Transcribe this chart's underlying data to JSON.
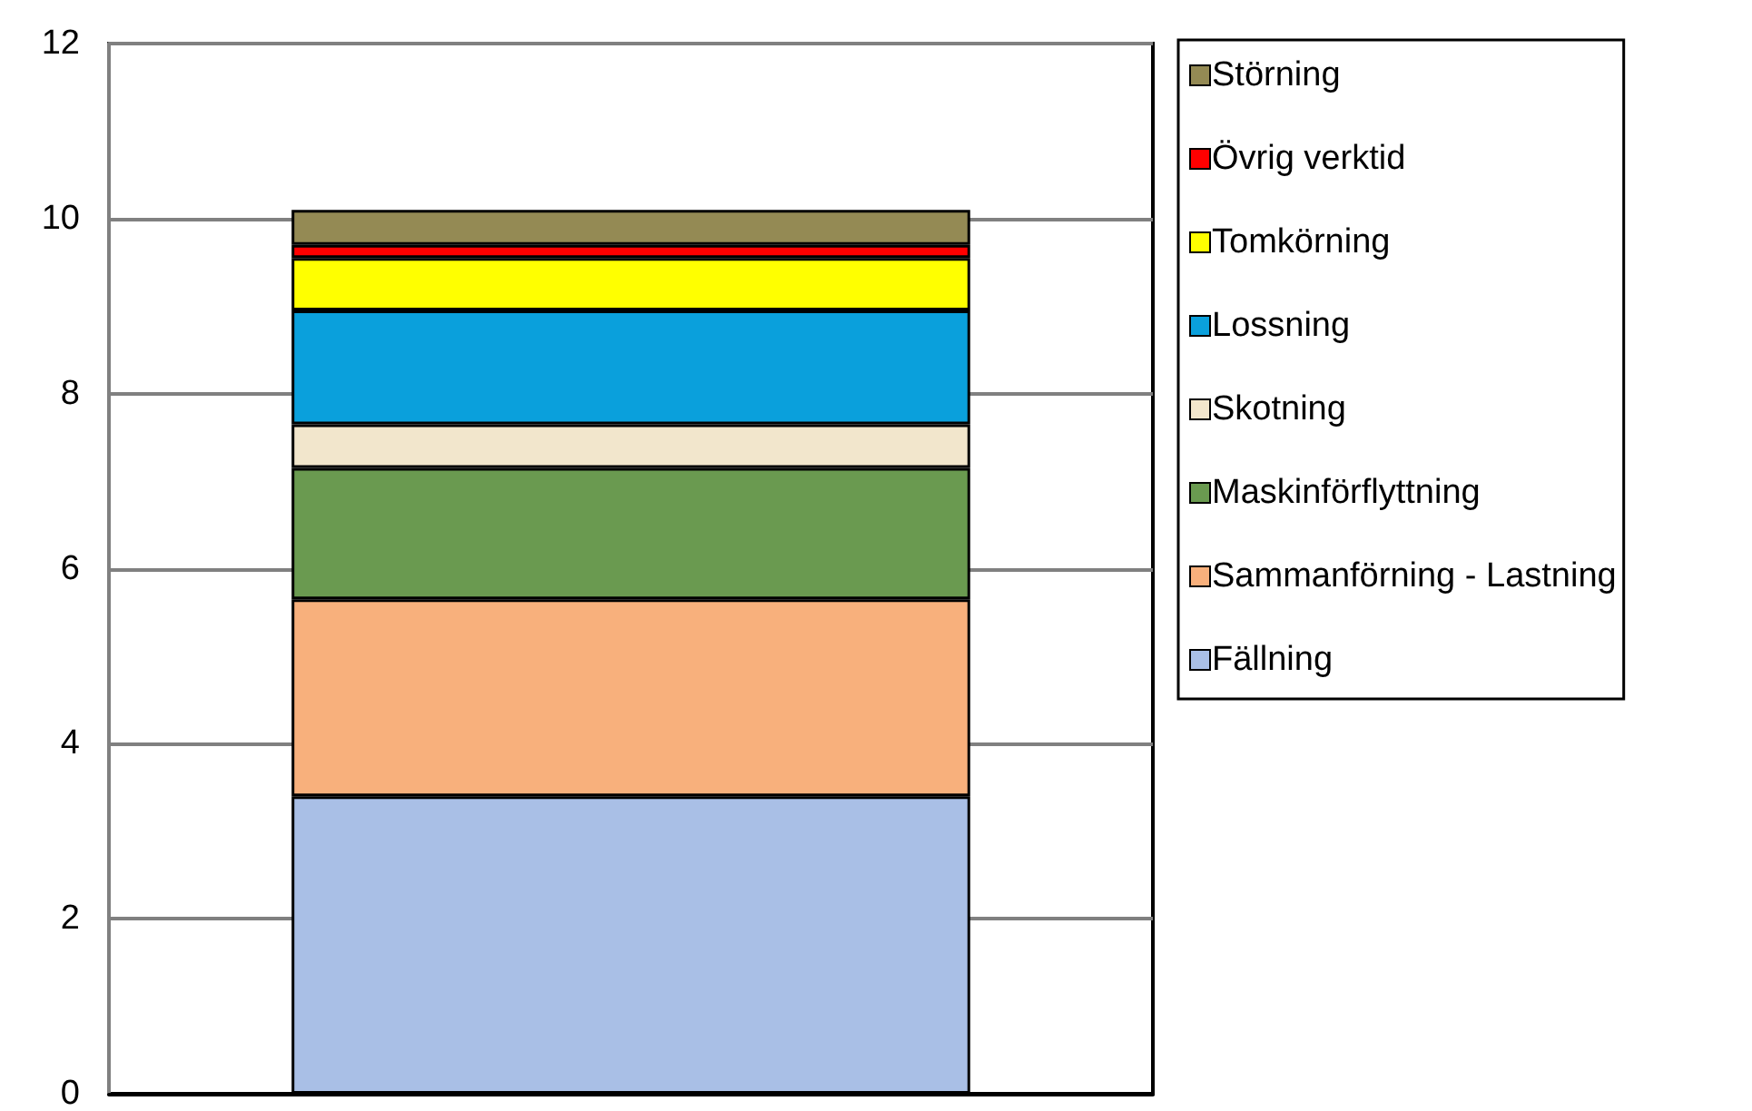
{
  "chart_data": {
    "type": "bar",
    "stacked": true,
    "categories": [
      null
    ],
    "series": [
      {
        "name": "Fällning",
        "color": "#a9bfe6",
        "values": [
          3.4
        ]
      },
      {
        "name": "Sammanförning - Lastning",
        "color": "#f8b07c",
        "values": [
          2.25
        ]
      },
      {
        "name": "Maskinförflyttning",
        "color": "#6a9a50",
        "values": [
          1.5
        ]
      },
      {
        "name": "Skotning",
        "color": "#f2e6cc",
        "values": [
          0.5
        ]
      },
      {
        "name": "Lossning",
        "color": "#0aa0dc",
        "values": [
          1.3
        ]
      },
      {
        "name": "Tomkörning",
        "color": "#ffff00",
        "values": [
          0.6
        ]
      },
      {
        "name": "Övrig verktid",
        "color": "#ff0000",
        "values": [
          0.15
        ]
      },
      {
        "name": "Störning",
        "color": "#948a54",
        "values": [
          0.4
        ]
      }
    ],
    "ylim": [
      0,
      12
    ],
    "yticks": [
      0,
      2,
      4,
      6,
      8,
      10,
      12
    ],
    "grid": "y",
    "legend": "right"
  }
}
